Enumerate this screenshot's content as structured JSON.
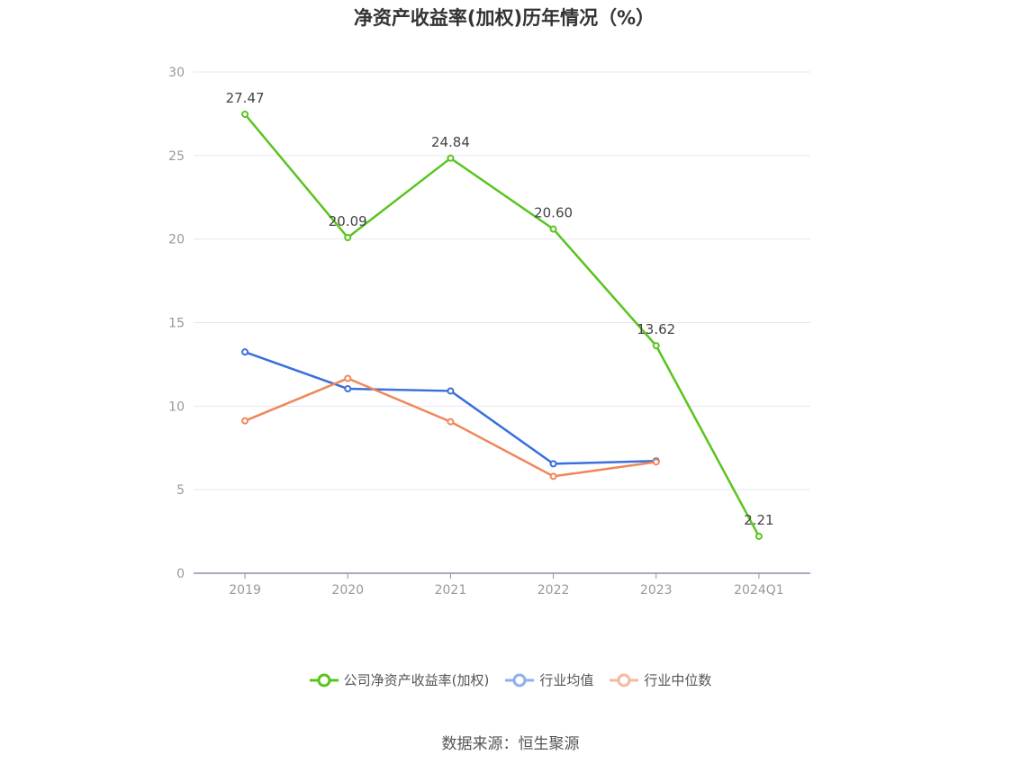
{
  "chart_data": {
    "type": "line",
    "title": "净资产收益率(加权)历年情况（%）",
    "categories": [
      "2019",
      "2020",
      "2021",
      "2022",
      "2023",
      "2024Q1"
    ],
    "ylim": [
      0,
      30
    ],
    "yticks": [
      0,
      5,
      10,
      15,
      20,
      25,
      30
    ],
    "grid": true,
    "legend_position": "bottom",
    "series": [
      {
        "name": "公司净资产收益率(加权)",
        "color": "#5ac41e",
        "values": [
          27.47,
          20.09,
          24.84,
          20.6,
          13.62,
          2.21
        ],
        "labels": [
          "27.47",
          "20.09",
          "24.84",
          "20.60",
          "13.62",
          "2.21"
        ]
      },
      {
        "name": "行业均值",
        "color": "#3a6fdc",
        "values": [
          13.24,
          11.04,
          10.91,
          6.55,
          6.72,
          null
        ]
      },
      {
        "name": "行业中位数",
        "color": "#f0865a",
        "values": [
          9.12,
          11.66,
          9.07,
          5.8,
          6.66,
          null
        ]
      }
    ]
  },
  "legend": {
    "items": [
      {
        "label": "公司净资产收益率(加权)",
        "color": "#5ac41e"
      },
      {
        "label": "行业均值",
        "color": "#8fb0ee"
      },
      {
        "label": "行业中位数",
        "color": "#f7b8a0"
      }
    ]
  },
  "footer": {
    "source": "数据来源：恒生聚源"
  }
}
